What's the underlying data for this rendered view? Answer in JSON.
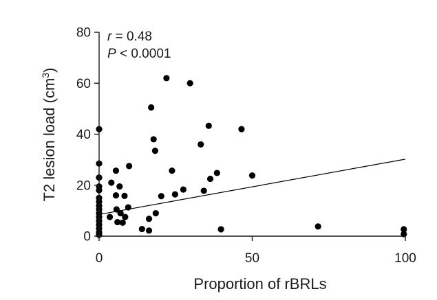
{
  "chart_data": {
    "type": "scatter",
    "xlabel": "Proportion of rBRLs",
    "ylabel": "T2 lesion load (cm",
    "ylabel_sup": "3",
    "ylabel_close": ")",
    "xlim": [
      0,
      100
    ],
    "ylim": [
      0,
      80
    ],
    "xticks": [
      0,
      50,
      100
    ],
    "yticks": [
      0,
      20,
      40,
      60,
      80
    ],
    "xtick_labels": [
      "0",
      "50",
      "100"
    ],
    "ytick_labels": [
      "0",
      "20",
      "40",
      "60",
      "80"
    ],
    "grid": false,
    "annotations": {
      "r_symbol": "r",
      "r_text": " = 0.48",
      "p_symbol": "P",
      "p_text": " < 0.0001"
    },
    "regression_line": {
      "x": [
        0,
        100
      ],
      "y": [
        8.5,
        30.2
      ]
    },
    "points": [
      {
        "x": 0,
        "y": 42
      },
      {
        "x": 0,
        "y": 28.5
      },
      {
        "x": 0,
        "y": 23
      },
      {
        "x": 0,
        "y": 19.5
      },
      {
        "x": 0,
        "y": 18
      },
      {
        "x": 0,
        "y": 15
      },
      {
        "x": 0,
        "y": 13.5
      },
      {
        "x": 0,
        "y": 12
      },
      {
        "x": 0,
        "y": 10.5
      },
      {
        "x": 0,
        "y": 9
      },
      {
        "x": 0,
        "y": 7.5
      },
      {
        "x": 0,
        "y": 6
      },
      {
        "x": 0,
        "y": 4.5
      },
      {
        "x": 0,
        "y": 3
      },
      {
        "x": 0,
        "y": 1.5
      },
      {
        "x": 0,
        "y": 0.5
      },
      {
        "x": 3.5,
        "y": 7.5
      },
      {
        "x": 4,
        "y": 21
      },
      {
        "x": 5.5,
        "y": 25.7
      },
      {
        "x": 5.5,
        "y": 16
      },
      {
        "x": 5.7,
        "y": 10.5
      },
      {
        "x": 6,
        "y": 5.5
      },
      {
        "x": 6.7,
        "y": 19.5
      },
      {
        "x": 7,
        "y": 9
      },
      {
        "x": 7.7,
        "y": 5.3
      },
      {
        "x": 8.3,
        "y": 15.8
      },
      {
        "x": 8.5,
        "y": 7.5
      },
      {
        "x": 9.5,
        "y": 11.3
      },
      {
        "x": 9.8,
        "y": 27.5
      },
      {
        "x": 14,
        "y": 2.8
      },
      {
        "x": 16.3,
        "y": 6.8
      },
      {
        "x": 16.3,
        "y": 2.2
      },
      {
        "x": 17,
        "y": 50.5
      },
      {
        "x": 17.8,
        "y": 38
      },
      {
        "x": 18.3,
        "y": 33.5
      },
      {
        "x": 18.5,
        "y": 9
      },
      {
        "x": 20.3,
        "y": 15.7
      },
      {
        "x": 22,
        "y": 62
      },
      {
        "x": 23.8,
        "y": 25.7
      },
      {
        "x": 24.8,
        "y": 16.4
      },
      {
        "x": 27.5,
        "y": 18.3
      },
      {
        "x": 29.7,
        "y": 60
      },
      {
        "x": 33.2,
        "y": 36
      },
      {
        "x": 34.2,
        "y": 17.8
      },
      {
        "x": 35.8,
        "y": 43.3
      },
      {
        "x": 36.3,
        "y": 22.5
      },
      {
        "x": 38.5,
        "y": 24.8
      },
      {
        "x": 39.8,
        "y": 2.7
      },
      {
        "x": 46.5,
        "y": 42
      },
      {
        "x": 50,
        "y": 23.8
      },
      {
        "x": 71.5,
        "y": 3.8
      },
      {
        "x": 99.5,
        "y": 2.7
      },
      {
        "x": 99.5,
        "y": 0.8
      }
    ]
  }
}
